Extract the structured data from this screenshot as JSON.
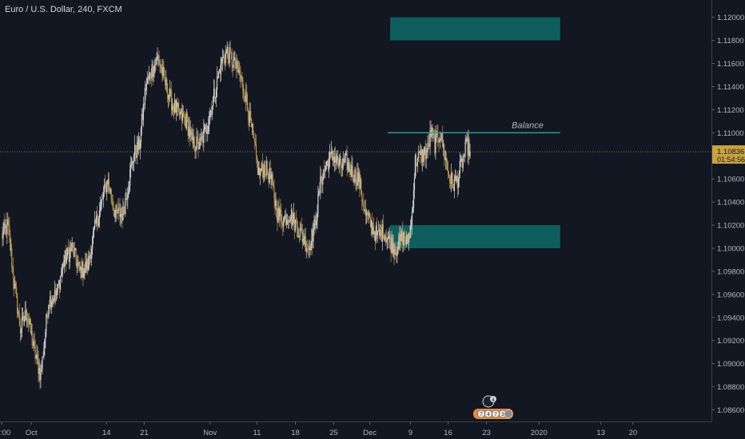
{
  "header": {
    "symbol_title": "Euro / U.S. Dollar, 240, FXCM"
  },
  "colors": {
    "background": "#131722",
    "axis_text": "#b2b5be",
    "up_candle": "#d0d3da",
    "down_candle": "#b8964a",
    "zone_fill": "#0e5e5e",
    "balance_line": "#26a69a",
    "price_line": "#8a7a4a",
    "price_badge": "#c9a33b"
  },
  "chart_data": {
    "type": "candlestick",
    "ylim": [
      1.085,
      1.1215
    ],
    "price_axis_labels": [
      "1.12000",
      "1.11800",
      "1.11600",
      "1.11400",
      "1.11200",
      "1.11000",
      "1.10800",
      "1.10600",
      "1.10400",
      "1.10200",
      "1.10000",
      "1.09800",
      "1.09600",
      "1.09400",
      "1.09200",
      "1.09000",
      "1.08800",
      "1.08600"
    ],
    "price_axis_values": [
      1.12,
      1.118,
      1.116,
      1.114,
      1.112,
      1.11,
      1.108,
      1.106,
      1.104,
      1.102,
      1.1,
      1.098,
      1.096,
      1.094,
      1.092,
      1.09,
      1.088,
      1.086
    ],
    "time_axis_labels": [
      ":00",
      "Oct",
      "14",
      "21",
      "Nov",
      "11",
      "18",
      "25",
      "Dec",
      "9",
      "16",
      "23",
      "2020",
      "13",
      "20"
    ],
    "time_axis_label_indices": [
      0,
      42,
      147,
      200,
      292,
      358,
      411,
      465,
      516,
      573,
      626,
      679,
      752,
      838,
      884
    ],
    "time_axis_label_bar_positions": [
      0,
      38,
      134,
      182,
      266,
      326,
      375,
      424,
      470,
      522,
      570,
      619,
      686,
      765,
      806
    ],
    "current_price": {
      "value": 1.10836,
      "label": "1.10836",
      "countdown": "01:54:56"
    },
    "balance_line": {
      "label": "Balance",
      "price": 1.11,
      "from_bar": 493,
      "to_bar": 713
    },
    "zones": [
      {
        "name": "upper-zone",
        "top": 1.12,
        "bottom": 1.118,
        "from_bar": 496,
        "to_bar": 713
      },
      {
        "name": "lower-zone",
        "top": 1.102,
        "bottom": 1.1,
        "from_bar": 496,
        "to_bar": 713
      }
    ],
    "events_badge": {
      "top_count": "4",
      "bottom_labels": [
        "7",
        "4",
        "7",
        "3"
      ]
    },
    "anchors": [
      {
        "bar": 0,
        "price": 1.101
      },
      {
        "bar": 8,
        "price": 1.102
      },
      {
        "bar": 16,
        "price": 1.097
      },
      {
        "bar": 24,
        "price": 1.093
      },
      {
        "bar": 32,
        "price": 1.0945
      },
      {
        "bar": 42,
        "price": 1.091
      },
      {
        "bar": 50,
        "price": 1.089
      },
      {
        "bar": 60,
        "price": 1.0955
      },
      {
        "bar": 70,
        "price": 1.096
      },
      {
        "bar": 80,
        "price": 1.099
      },
      {
        "bar": 90,
        "price": 1.1
      },
      {
        "bar": 100,
        "price": 1.098
      },
      {
        "bar": 110,
        "price": 1.0985
      },
      {
        "bar": 120,
        "price": 1.102
      },
      {
        "bar": 128,
        "price": 1.104
      },
      {
        "bar": 135,
        "price": 1.106
      },
      {
        "bar": 145,
        "price": 1.103
      },
      {
        "bar": 155,
        "price": 1.103
      },
      {
        "bar": 163,
        "price": 1.106
      },
      {
        "bar": 168,
        "price": 1.108
      },
      {
        "bar": 176,
        "price": 1.109
      },
      {
        "bar": 184,
        "price": 1.114
      },
      {
        "bar": 192,
        "price": 1.1155
      },
      {
        "bar": 200,
        "price": 1.1165
      },
      {
        "bar": 210,
        "price": 1.114
      },
      {
        "bar": 218,
        "price": 1.1125
      },
      {
        "bar": 228,
        "price": 1.1115
      },
      {
        "bar": 236,
        "price": 1.111
      },
      {
        "bar": 244,
        "price": 1.109
      },
      {
        "bar": 254,
        "price": 1.109
      },
      {
        "bar": 264,
        "price": 1.111
      },
      {
        "bar": 272,
        "price": 1.1135
      },
      {
        "bar": 280,
        "price": 1.116
      },
      {
        "bar": 288,
        "price": 1.117
      },
      {
        "bar": 296,
        "price": 1.116
      },
      {
        "bar": 304,
        "price": 1.115
      },
      {
        "bar": 312,
        "price": 1.113
      },
      {
        "bar": 320,
        "price": 1.11
      },
      {
        "bar": 328,
        "price": 1.1065
      },
      {
        "bar": 336,
        "price": 1.107
      },
      {
        "bar": 344,
        "price": 1.106
      },
      {
        "bar": 352,
        "price": 1.103
      },
      {
        "bar": 360,
        "price": 1.1025
      },
      {
        "bar": 368,
        "price": 1.103
      },
      {
        "bar": 376,
        "price": 1.102
      },
      {
        "bar": 384,
        "price": 1.101
      },
      {
        "bar": 392,
        "price": 1.1
      },
      {
        "bar": 400,
        "price": 1.102
      },
      {
        "bar": 408,
        "price": 1.106
      },
      {
        "bar": 416,
        "price": 1.1075
      },
      {
        "bar": 424,
        "price": 1.108
      },
      {
        "bar": 432,
        "price": 1.107
      },
      {
        "bar": 440,
        "price": 1.1075
      },
      {
        "bar": 448,
        "price": 1.1065
      },
      {
        "bar": 456,
        "price": 1.106
      },
      {
        "bar": 464,
        "price": 1.103
      },
      {
        "bar": 472,
        "price": 1.102
      },
      {
        "bar": 480,
        "price": 1.101
      },
      {
        "bar": 488,
        "price": 1.1015
      },
      {
        "bar": 496,
        "price": 1.1005
      },
      {
        "bar": 504,
        "price": 1.1
      },
      {
        "bar": 512,
        "price": 1.101
      },
      {
        "bar": 518,
        "price": 1.1005
      },
      {
        "bar": 523,
        "price": 1.102
      },
      {
        "bar": 528,
        "price": 1.1075
      },
      {
        "bar": 536,
        "price": 1.108
      },
      {
        "bar": 544,
        "price": 1.1085
      },
      {
        "bar": 548,
        "price": 1.11
      },
      {
        "bar": 553,
        "price": 1.109
      },
      {
        "bar": 560,
        "price": 1.11
      },
      {
        "bar": 566,
        "price": 1.108
      },
      {
        "bar": 570,
        "price": 1.1065
      },
      {
        "bar": 576,
        "price": 1.1055
      },
      {
        "bar": 582,
        "price": 1.106
      },
      {
        "bar": 588,
        "price": 1.1075
      },
      {
        "bar": 594,
        "price": 1.109
      },
      {
        "bar": 598,
        "price": 1.1084
      }
    ]
  }
}
